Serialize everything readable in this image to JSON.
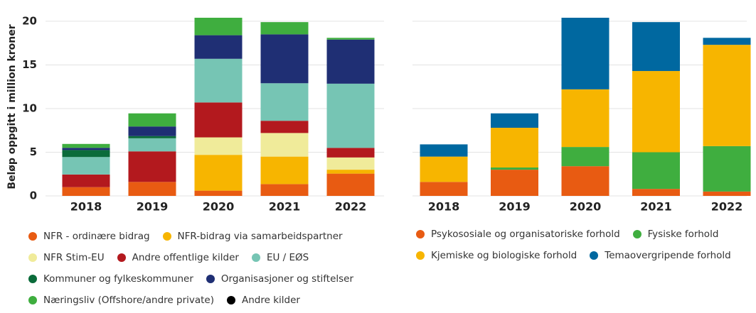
{
  "chart_data": [
    {
      "type": "stacked_bar",
      "y_label": "Beløp oppgitt i million kroner",
      "categories": [
        "2018",
        "2019",
        "2020",
        "2021",
        "2022"
      ],
      "highlight": {
        "category": "2022",
        "color": "#d9001b"
      },
      "ylim": [
        0,
        20.4
      ],
      "yticks": [
        0,
        5,
        10,
        15,
        20
      ],
      "grid": true,
      "show_ytick_labels": true,
      "series": [
        {
          "name": "NFR - ordinære bidrag",
          "color": "#e85b12",
          "values": [
            1.0,
            1.6,
            0.6,
            1.35,
            2.55
          ]
        },
        {
          "name": "NFR-bidrag via samarbeidspartner",
          "color": "#f7b500",
          "values": [
            0,
            0,
            4.1,
            3.15,
            0.45
          ]
        },
        {
          "name": "NFR Stim-EU",
          "color": "#f0eb9a",
          "values": [
            0,
            0,
            2.0,
            2.7,
            1.4
          ]
        },
        {
          "name": "Andre offentlige kilder",
          "color": "#b3191e",
          "values": [
            1.45,
            3.5,
            4.0,
            1.4,
            1.1
          ]
        },
        {
          "name": "EU / EØS",
          "color": "#76c5b4",
          "values": [
            2.0,
            1.5,
            5.0,
            4.3,
            7.35
          ]
        },
        {
          "name": "Kommuner og fylkeskommuner",
          "color": "#0a6b3a",
          "values": [
            0.8,
            0.25,
            0,
            0,
            0
          ]
        },
        {
          "name": "Organisasjoner og stiftelser",
          "color": "#1f2f74",
          "values": [
            0.25,
            1.1,
            2.7,
            5.6,
            5.05
          ]
        },
        {
          "name": "Næringsliv (Offshore/andre private)",
          "color": "#3fae3f",
          "values": [
            0.45,
            1.5,
            2.0,
            1.4,
            0.2
          ]
        },
        {
          "name": "Andre kilder",
          "color": "#000000",
          "values": [
            0,
            0,
            0,
            0,
            0
          ]
        }
      ]
    },
    {
      "type": "stacked_bar",
      "categories": [
        "2018",
        "2019",
        "2020",
        "2021",
        "2022"
      ],
      "highlight": {
        "category": "2022",
        "color": "#d9001b"
      },
      "ylim": [
        0,
        20.4
      ],
      "yticks": [
        0,
        5,
        10,
        15,
        20
      ],
      "grid": true,
      "show_ytick_labels": false,
      "series": [
        {
          "name": "Psykososiale og organisatoriske forhold",
          "color": "#e85b12",
          "values": [
            1.6,
            3.0,
            3.4,
            0.8,
            0.5
          ]
        },
        {
          "name": "Fysiske forhold",
          "color": "#3fae3f",
          "values": [
            0,
            0.25,
            2.2,
            4.2,
            5.2
          ]
        },
        {
          "name": "Kjemiske og biologiske forhold",
          "color": "#f7b500",
          "values": [
            2.9,
            4.55,
            6.6,
            9.3,
            11.6
          ]
        },
        {
          "name": "Temaovergripende forhold",
          "color": "#0068a0",
          "values": [
            1.4,
            1.65,
            8.2,
            5.6,
            0.8
          ]
        }
      ]
    }
  ]
}
